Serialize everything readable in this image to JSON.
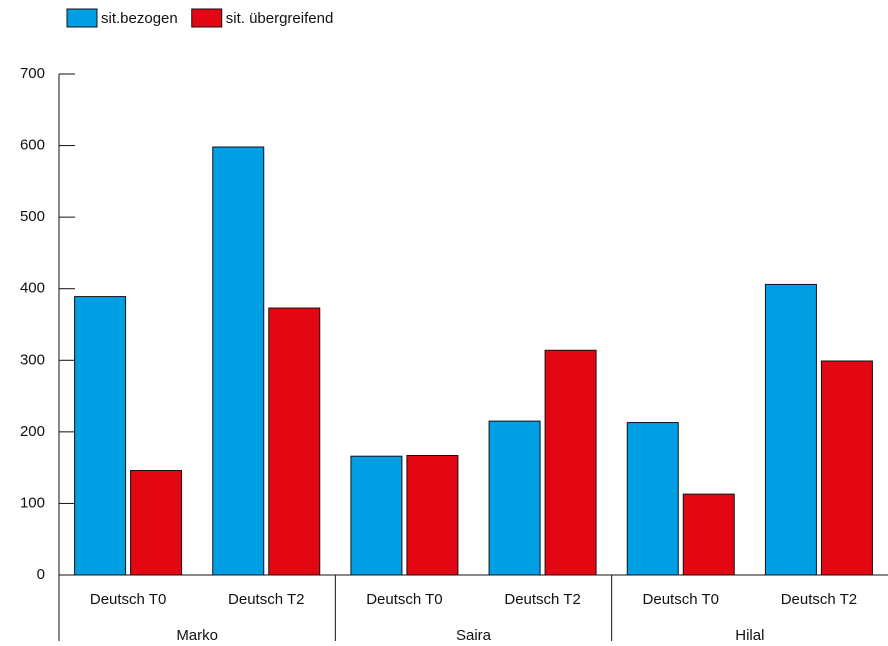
{
  "chart_data": {
    "type": "bar",
    "categories": [
      "Deutsch T0",
      "Deutsch T2",
      "Deutsch T0",
      "Deutsch T2",
      "Deutsch T0",
      "Deutsch T2"
    ],
    "groups": [
      "Marko",
      "Saira",
      "Hilal"
    ],
    "series": [
      {
        "name": "sit.bezogen",
        "color": "#009fe3",
        "values": [
          389,
          598,
          166,
          215,
          213,
          406
        ]
      },
      {
        "name": "sit. übergreifend",
        "color": "#e30613",
        "values": [
          146,
          373,
          167,
          314,
          113,
          299
        ]
      }
    ],
    "ylim": [
      0,
      700
    ],
    "yticks": [
      0,
      100,
      200,
      300,
      400,
      500,
      600,
      700
    ],
    "legend": "top-left"
  }
}
